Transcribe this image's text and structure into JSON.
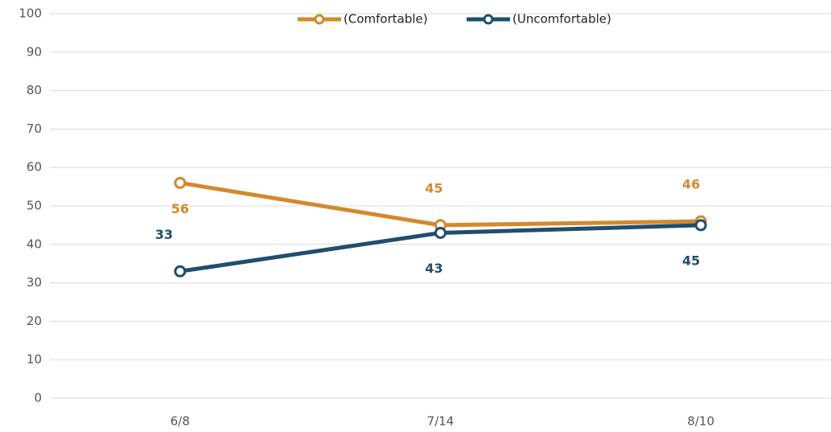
{
  "chart_data": {
    "type": "line",
    "categories": [
      "6/8",
      "7/14",
      "8/10"
    ],
    "series": [
      {
        "name": "(Comfortable)",
        "color": "#d4892a",
        "values": [
          56,
          45,
          46
        ]
      },
      {
        "name": "(Uncomfortable)",
        "color": "#1f4e6e",
        "values": [
          33,
          43,
          45
        ]
      }
    ],
    "ylim": [
      0,
      100
    ],
    "yticks": [
      0,
      10,
      20,
      30,
      40,
      50,
      60,
      70,
      80,
      90,
      100
    ],
    "grid": true,
    "legend": "top"
  }
}
